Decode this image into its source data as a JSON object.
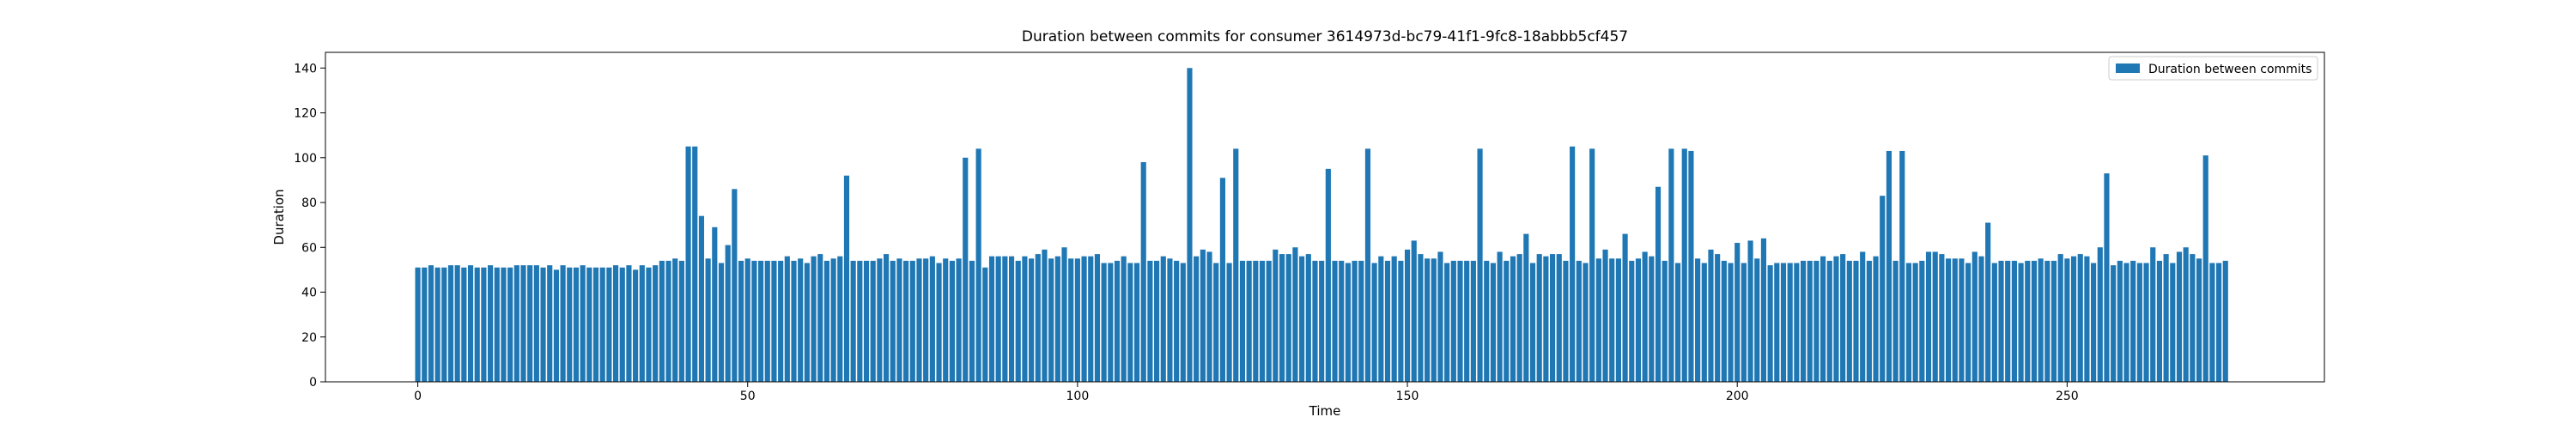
{
  "chart_data": {
    "type": "bar",
    "title": "Duration between commits for consumer 3614973d-bc79-41f1-9fc8-18abbb5cf457",
    "xlabel": "Time",
    "ylabel": "Duration",
    "xlim": [
      -14,
      289
    ],
    "ylim": [
      0,
      147
    ],
    "x_ticks": [
      0,
      50,
      100,
      150,
      200,
      250
    ],
    "y_ticks": [
      0,
      20,
      40,
      60,
      80,
      100,
      120,
      140
    ],
    "grid": false,
    "legend_position": "top-right",
    "bar_color": "#1f77b4",
    "series": [
      {
        "name": "Duration between commits",
        "values": [
          51,
          51,
          52,
          51,
          51,
          52,
          52,
          51,
          52,
          51,
          51,
          52,
          51,
          51,
          51,
          52,
          52,
          52,
          52,
          51,
          52,
          50,
          52,
          51,
          51,
          52,
          51,
          51,
          51,
          51,
          52,
          51,
          52,
          50,
          52,
          51,
          52,
          54,
          54,
          55,
          54,
          105,
          105,
          74,
          55,
          69,
          53,
          61,
          86,
          54,
          55,
          54,
          54,
          54,
          54,
          54,
          56,
          54,
          55,
          53,
          56,
          57,
          54,
          55,
          56,
          92,
          54,
          54,
          54,
          54,
          55,
          57,
          54,
          55,
          54,
          54,
          55,
          55,
          56,
          53,
          55,
          54,
          55,
          100,
          54,
          104,
          51,
          56,
          56,
          56,
          56,
          54,
          56,
          55,
          57,
          59,
          55,
          56,
          60,
          55,
          55,
          56,
          56,
          57,
          53,
          53,
          54,
          56,
          53,
          53,
          98,
          54,
          54,
          56,
          55,
          54,
          53,
          140,
          56,
          59,
          58,
          53,
          91,
          53,
          104,
          54,
          54,
          54,
          54,
          54,
          59,
          57,
          57,
          60,
          56,
          57,
          54,
          54,
          95,
          54,
          54,
          53,
          54,
          54,
          104,
          53,
          56,
          54,
          56,
          54,
          59,
          63,
          57,
          55,
          55,
          58,
          53,
          54,
          54,
          54,
          54,
          104,
          54,
          53,
          58,
          54,
          56,
          57,
          66,
          53,
          57,
          56,
          57,
          57,
          54,
          105,
          54,
          53,
          104,
          55,
          59,
          55,
          55,
          66,
          54,
          55,
          58,
          56,
          87,
          54,
          104,
          53,
          104,
          103,
          55,
          53,
          59,
          57,
          54,
          53,
          62,
          53,
          63,
          55,
          64,
          52,
          53,
          53,
          53,
          53,
          54,
          54,
          54,
          56,
          54,
          56,
          57,
          54,
          54,
          58,
          54,
          56,
          83,
          103,
          54,
          103,
          53,
          53,
          54,
          58,
          58,
          57,
          55,
          55,
          55,
          53,
          58,
          56,
          71,
          53,
          54,
          54,
          54,
          53,
          54,
          54,
          55,
          54,
          54,
          57,
          55,
          56,
          57,
          56,
          53,
          60,
          93,
          52,
          54,
          53,
          54,
          53,
          53,
          60,
          54,
          57,
          53,
          58,
          60,
          57,
          55,
          101,
          53,
          53,
          54
        ]
      }
    ]
  }
}
